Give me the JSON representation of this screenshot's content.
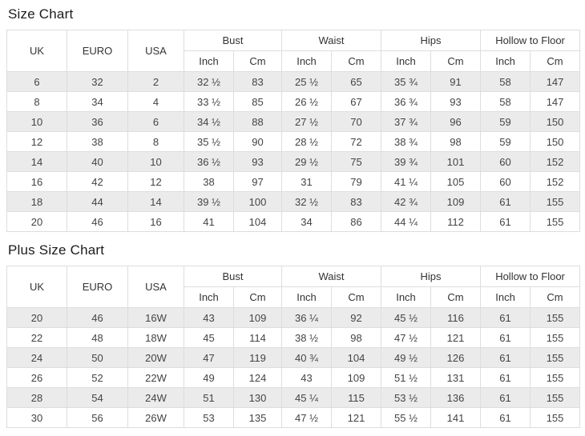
{
  "titles": {
    "size_chart": "Size Chart",
    "plus_size_chart": "Plus Size Chart"
  },
  "columns": {
    "uk": "UK",
    "euro": "EURO",
    "usa": "USA",
    "groups": [
      "Bust",
      "Waist",
      "Hips",
      "Hollow to Floor"
    ],
    "sub": {
      "inch": "Inch",
      "cm": "Cm"
    }
  },
  "size_chart": {
    "rows": [
      [
        "6",
        "32",
        "2",
        "32 ½",
        "83",
        "25 ½",
        "65",
        "35 ¾",
        "91",
        "58",
        "147"
      ],
      [
        "8",
        "34",
        "4",
        "33 ½",
        "85",
        "26 ½",
        "67",
        "36 ¾",
        "93",
        "58",
        "147"
      ],
      [
        "10",
        "36",
        "6",
        "34 ½",
        "88",
        "27 ½",
        "70",
        "37 ¾",
        "96",
        "59",
        "150"
      ],
      [
        "12",
        "38",
        "8",
        "35 ½",
        "90",
        "28 ½",
        "72",
        "38 ¾",
        "98",
        "59",
        "150"
      ],
      [
        "14",
        "40",
        "10",
        "36 ½",
        "93",
        "29 ½",
        "75",
        "39 ¾",
        "101",
        "60",
        "152"
      ],
      [
        "16",
        "42",
        "12",
        "38",
        "97",
        "31",
        "79",
        "41 ¼",
        "105",
        "60",
        "152"
      ],
      [
        "18",
        "44",
        "14",
        "39 ½",
        "100",
        "32 ½",
        "83",
        "42 ¾",
        "109",
        "61",
        "155"
      ],
      [
        "20",
        "46",
        "16",
        "41",
        "104",
        "34",
        "86",
        "44 ¼",
        "112",
        "61",
        "155"
      ]
    ]
  },
  "plus_size_chart": {
    "rows": [
      [
        "20",
        "46",
        "16W",
        "43",
        "109",
        "36 ¼",
        "92",
        "45 ½",
        "116",
        "61",
        "155"
      ],
      [
        "22",
        "48",
        "18W",
        "45",
        "114",
        "38 ½",
        "98",
        "47 ½",
        "121",
        "61",
        "155"
      ],
      [
        "24",
        "50",
        "20W",
        "47",
        "119",
        "40 ¾",
        "104",
        "49 ½",
        "126",
        "61",
        "155"
      ],
      [
        "26",
        "52",
        "22W",
        "49",
        "124",
        "43",
        "109",
        "51 ½",
        "131",
        "61",
        "155"
      ],
      [
        "28",
        "54",
        "24W",
        "51",
        "130",
        "45 ¼",
        "115",
        "53 ½",
        "136",
        "61",
        "155"
      ],
      [
        "30",
        "56",
        "26W",
        "53",
        "135",
        "47 ½",
        "121",
        "55 ½",
        "141",
        "61",
        "155"
      ]
    ]
  },
  "colors": {
    "stripe": "#ebebeb",
    "border": "#dddddd",
    "header_text": "#333333",
    "cell_text": "#444444",
    "title_text": "#1b1b1b"
  }
}
